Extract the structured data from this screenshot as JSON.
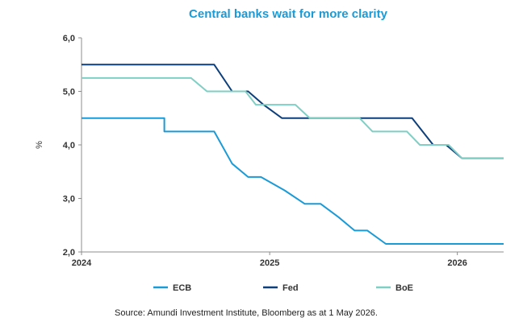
{
  "chart_data": {
    "type": "line",
    "title": "Central banks wait for more clarity",
    "xlabel": "",
    "ylabel": "%",
    "xlim": [
      "2024-01-01",
      "2026-04-01"
    ],
    "ylim": [
      2.0,
      6.0
    ],
    "x_ticks": [
      "2024",
      "2025",
      "2026"
    ],
    "y_ticks": [
      "6,0",
      "5,0",
      "4,0",
      "3,0",
      "2,0"
    ],
    "grid": false,
    "legend_position": "bottom",
    "series": [
      {
        "name": "ECB",
        "color": "#1a9ad6",
        "points": [
          [
            "2024-01-01",
            4.5
          ],
          [
            "2024-06-10",
            4.5
          ],
          [
            "2024-06-10",
            4.25
          ],
          [
            "2024-09-15",
            4.25
          ],
          [
            "2024-10-20",
            3.65
          ],
          [
            "2024-11-20",
            3.4
          ],
          [
            "2024-12-15",
            3.4
          ],
          [
            "2025-01-30",
            3.15
          ],
          [
            "2025-03-10",
            2.9
          ],
          [
            "2025-04-10",
            2.9
          ],
          [
            "2025-05-15",
            2.65
          ],
          [
            "2025-06-15",
            2.4
          ],
          [
            "2025-07-10",
            2.4
          ],
          [
            "2025-08-15",
            2.15
          ],
          [
            "2026-04-01",
            2.15
          ]
        ]
      },
      {
        "name": "Fed",
        "color": "#0d3f7a",
        "points": [
          [
            "2024-01-01",
            5.5
          ],
          [
            "2024-09-15",
            5.5
          ],
          [
            "2024-10-20",
            5.0
          ],
          [
            "2024-11-20",
            5.0
          ],
          [
            "2024-12-20",
            4.75
          ],
          [
            "2025-01-25",
            4.5
          ],
          [
            "2025-10-05",
            4.5
          ],
          [
            "2025-11-15",
            4.0
          ],
          [
            "2025-12-10",
            4.0
          ],
          [
            "2026-01-10",
            3.75
          ],
          [
            "2026-04-01",
            3.75
          ]
        ]
      },
      {
        "name": "BoE",
        "color": "#7fcfc4",
        "points": [
          [
            "2024-01-01",
            5.25
          ],
          [
            "2024-08-01",
            5.25
          ],
          [
            "2024-09-01",
            5.0
          ],
          [
            "2024-11-15",
            5.0
          ],
          [
            "2024-12-05",
            4.75
          ],
          [
            "2025-02-20",
            4.75
          ],
          [
            "2025-03-20",
            4.5
          ],
          [
            "2025-06-25",
            4.5
          ],
          [
            "2025-07-20",
            4.25
          ],
          [
            "2025-09-25",
            4.25
          ],
          [
            "2025-10-20",
            4.0
          ],
          [
            "2025-12-15",
            4.0
          ],
          [
            "2026-01-10",
            3.75
          ],
          [
            "2026-04-01",
            3.75
          ]
        ]
      }
    ],
    "source": "Source: Amundi Investment Institute, Bloomberg as at 1 May 2026."
  }
}
